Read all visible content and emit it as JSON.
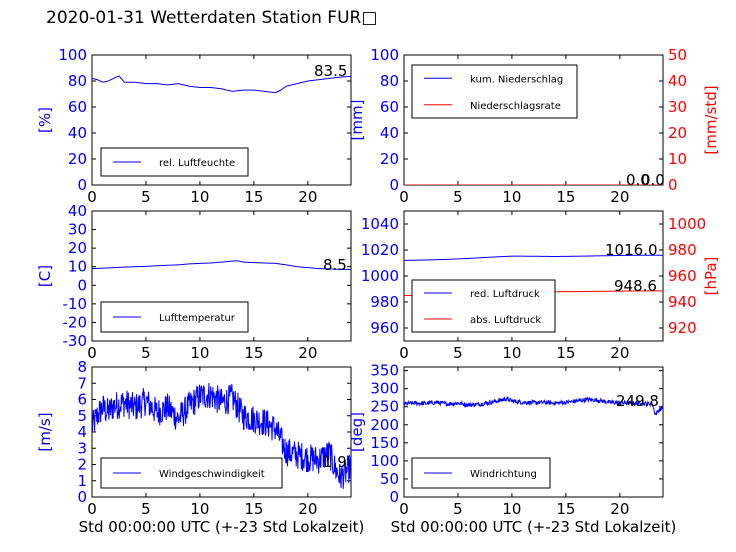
{
  "title": "2020-01-31 Wetterdaten Station FUR□",
  "colors": {
    "blue": "#0000ff",
    "red": "#ff0000",
    "black": "#000000"
  },
  "chart_data": [
    {
      "id": "humidity",
      "type": "line",
      "xlim": [
        0,
        24
      ],
      "xticks": [
        0,
        5,
        10,
        15,
        20
      ],
      "xlabel": "",
      "ylabel": "[%]",
      "ylim": [
        0,
        100
      ],
      "yticks": [
        0,
        20,
        40,
        60,
        80,
        100
      ],
      "legend": "bottom-left",
      "series": [
        {
          "name": "rel. Luftfeuchte",
          "color": "#0000ff",
          "x": [
            0,
            0.5,
            1,
            1.5,
            2,
            2.5,
            3,
            4,
            5,
            6,
            7,
            8,
            9,
            10,
            11,
            12,
            13,
            14,
            15,
            16,
            17,
            17.5,
            18,
            19,
            20,
            21,
            22,
            23,
            24
          ],
          "y": [
            82,
            81,
            79,
            80,
            82,
            84,
            79,
            79,
            78,
            78,
            77,
            78,
            76,
            75,
            75,
            74,
            72,
            73,
            73,
            72,
            71,
            73,
            76,
            78,
            80,
            81,
            82,
            83,
            83.5
          ]
        }
      ],
      "annotations": [
        "83.5"
      ]
    },
    {
      "id": "precipitation",
      "type": "line",
      "xlim": [
        0,
        24
      ],
      "xticks": [
        0,
        5,
        10,
        15,
        20
      ],
      "xlabel": "",
      "ylabel": "[mm]",
      "ylabel_right": "[mm/std]",
      "ylim": [
        0,
        100
      ],
      "yticks": [
        0,
        20,
        40,
        60,
        80,
        100
      ],
      "ylim_right": [
        0,
        50
      ],
      "yticks_right": [
        0,
        10,
        20,
        30,
        40,
        50
      ],
      "legend": "top-left",
      "series": [
        {
          "name": "kum. Niederschlag",
          "color": "#0000ff",
          "axis": "left",
          "x": [
            0,
            24
          ],
          "y": [
            0,
            0
          ]
        },
        {
          "name": "Niederschlagsrate",
          "color": "#ff0000",
          "axis": "right",
          "x": [
            0,
            24
          ],
          "y": [
            0,
            0
          ]
        }
      ],
      "annotations": [
        "0.0",
        "0.0"
      ]
    },
    {
      "id": "temperature",
      "type": "line",
      "xlim": [
        0,
        24
      ],
      "xticks": [
        0,
        5,
        10,
        15,
        20
      ],
      "xlabel": "",
      "ylabel": "[C]",
      "ylim": [
        -30,
        40
      ],
      "yticks": [
        -30,
        -20,
        -10,
        0,
        10,
        20,
        30,
        40
      ],
      "legend": "bottom-left",
      "series": [
        {
          "name": "Lufttemperatur",
          "color": "#0000ff",
          "x": [
            0,
            1,
            2,
            3,
            4,
            5,
            6,
            7,
            8,
            9,
            10,
            11,
            12,
            13,
            13.5,
            14,
            15,
            16,
            17,
            18,
            19,
            20,
            21,
            22,
            23,
            24
          ],
          "y": [
            9,
            9.2,
            9.5,
            9.8,
            10,
            10.2,
            10.5,
            10.8,
            11,
            11.5,
            11.8,
            12,
            12.5,
            13,
            13.2,
            12.5,
            12.2,
            12,
            11.8,
            11,
            10,
            9.5,
            9,
            8.8,
            8.6,
            8.5
          ]
        }
      ],
      "annotations": [
        "8.5"
      ]
    },
    {
      "id": "pressure",
      "type": "line",
      "xlim": [
        0,
        24
      ],
      "xticks": [
        0,
        5,
        10,
        15,
        20
      ],
      "xlabel": "",
      "ylabel": "",
      "ylabel_right": "[hPa]",
      "ylim": [
        950,
        1050
      ],
      "yticks": [
        960,
        980,
        1000,
        1020,
        1040
      ],
      "ylim_right": [
        910,
        1010
      ],
      "yticks_right": [
        920,
        940,
        960,
        980,
        1000
      ],
      "legend": "bottom-left",
      "series": [
        {
          "name": "red. Luftdruck",
          "color": "#0000ff",
          "axis": "left",
          "x": [
            0,
            2,
            4,
            6,
            8,
            10,
            12,
            14,
            16,
            18,
            20,
            22,
            24
          ],
          "y": [
            1012,
            1012.3,
            1012.8,
            1013.5,
            1014.5,
            1015.3,
            1015.2,
            1015,
            1015.2,
            1015.5,
            1015.8,
            1016,
            1016
          ]
        },
        {
          "name": "abs. Luftdruck",
          "color": "#ff0000",
          "axis": "right",
          "x": [
            0,
            2,
            4,
            6,
            8,
            10,
            12,
            14,
            16,
            18,
            20,
            22,
            24
          ],
          "y": [
            945,
            945.2,
            945.8,
            946.3,
            947,
            947.5,
            947.8,
            947.9,
            948,
            948.2,
            948.4,
            948.5,
            948.6
          ]
        }
      ],
      "annotations": [
        "1016.0",
        "948.6"
      ]
    },
    {
      "id": "windspeed",
      "type": "line",
      "xlim": [
        0,
        24
      ],
      "xticks": [
        0,
        5,
        10,
        15,
        20
      ],
      "xlabel": "Std 00:00:00 UTC (+-23 Std Lokalzeit)",
      "ylabel": "[m/s]",
      "ylim": [
        0,
        8
      ],
      "yticks": [
        0,
        1,
        2,
        3,
        4,
        5,
        6,
        7,
        8
      ],
      "legend": "bottom-left",
      "series": [
        {
          "name": "Windgeschwindigkeit",
          "color": "#0000ff",
          "x": [
            0,
            0.5,
            1,
            1.5,
            2,
            3,
            4,
            5,
            6,
            7,
            8,
            9,
            10,
            11,
            12,
            13,
            14,
            15,
            16,
            17,
            17.5,
            18,
            19,
            20,
            21,
            22,
            22.5,
            23,
            23.5,
            24
          ],
          "y": [
            4.3,
            5,
            5.5,
            5.2,
            5.6,
            5.8,
            5.5,
            5.9,
            5.2,
            5.5,
            4.8,
            5.6,
            6.2,
            6.3,
            5.8,
            6.1,
            5,
            4.8,
            4.6,
            4.2,
            3.5,
            2.8,
            2.6,
            2.4,
            2.3,
            2.7,
            1.8,
            1.2,
            1.5,
            1.9
          ],
          "noise": 0.9
        }
      ],
      "annotations": [
        "1.9"
      ]
    },
    {
      "id": "winddirection",
      "type": "line",
      "xlim": [
        0,
        24
      ],
      "xticks": [
        0,
        5,
        10,
        15,
        20
      ],
      "xlabel": "Std 00:00:00 UTC (+-23 Std Lokalzeit)",
      "ylabel": "[deg]",
      "ylim": [
        0,
        360
      ],
      "yticks": [
        0,
        50,
        100,
        150,
        200,
        250,
        300,
        350
      ],
      "legend": "bottom-left",
      "series": [
        {
          "name": "Windrichtung",
          "color": "#0000ff",
          "x": [
            0,
            1,
            2,
            3,
            4,
            5,
            6,
            7,
            8,
            9,
            9.5,
            10,
            11,
            12,
            13,
            14,
            15,
            16,
            17,
            18,
            19,
            20,
            21,
            22,
            23,
            23.3,
            23.6,
            24
          ],
          "y": [
            258,
            260,
            259,
            262,
            258,
            260,
            255,
            257,
            262,
            268,
            272,
            266,
            262,
            261,
            262,
            260,
            262,
            266,
            270,
            268,
            262,
            261,
            260,
            259,
            258,
            228,
            240,
            250
          ],
          "noise": 6
        }
      ],
      "annotations": [
        "249.8"
      ]
    }
  ]
}
